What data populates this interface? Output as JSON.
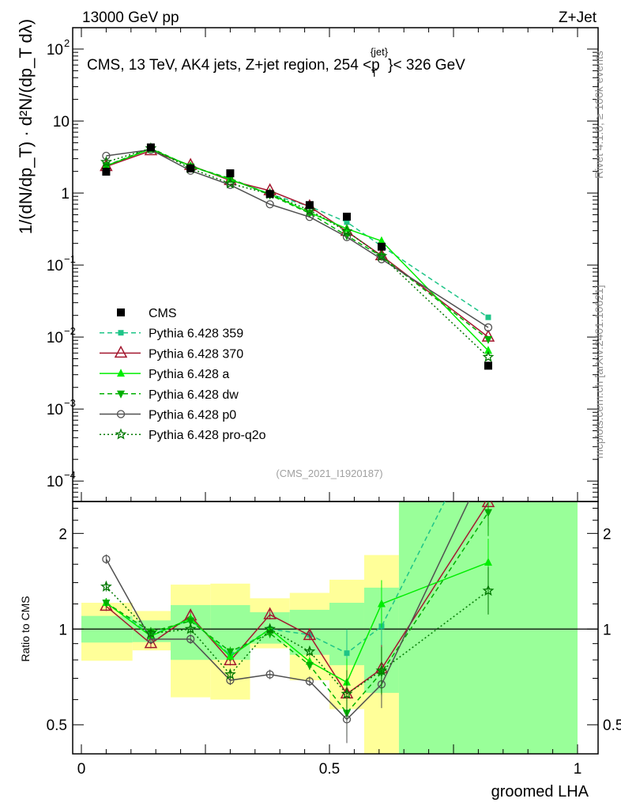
{
  "header": {
    "left": "13000 GeV pp",
    "right": "Z+Jet"
  },
  "side_text": {
    "rivet": "Rivet 4.1.0, ≥ 100k events",
    "mcplots": "mcplots.cern.ch [arXiv:2401.10621]"
  },
  "watermark": "(CMS_2021_I1920187)",
  "chart_data": [
    {
      "type": "line",
      "panel": "main",
      "title": "CMS, 13 TeV, AK4 jets, Z+jet region, 254 <p_T^{jet}< 326 GeV",
      "title_parts": {
        "main": "CMS, 13 TeV, AK4 jets, Z+jet region, 254 <p",
        "sub": "T",
        "sup": "{jet}",
        "tail": "}< 326 GeV"
      },
      "ylabel": "1/(dN/dp_T) · d²N/(dp_T dλ)",
      "yscale": "log",
      "ylim": [
        5.2e-05,
        198
      ],
      "xlim": [
        0,
        1
      ],
      "ytick_labels": [
        {
          "v": 100,
          "label": "10",
          "exp": "2"
        },
        {
          "v": 10,
          "label": "10",
          "exp": ""
        },
        {
          "v": 1,
          "label": "1",
          "exp": ""
        },
        {
          "v": 0.1,
          "label": "10",
          "exp": "−1"
        },
        {
          "v": 0.01,
          "label": "10",
          "exp": "−2"
        },
        {
          "v": 0.001,
          "label": "10",
          "exp": "−3"
        },
        {
          "v": 0.0001,
          "label": "10",
          "exp": "−4"
        }
      ],
      "legend_position": "left-middle",
      "x": [
        0.05,
        0.14,
        0.22,
        0.3,
        0.38,
        0.46,
        0.535,
        0.605,
        0.82
      ],
      "data": {
        "name": "CMS",
        "values": [
          1.98,
          4.3,
          2.2,
          1.88,
          0.97,
          0.68,
          0.47,
          0.18,
          0.004
        ]
      },
      "series": [
        {
          "name": "Pythia 6.428 359",
          "color": "#1ec487",
          "dash": "6,4",
          "marker": "square-small",
          "ratio": [
            1.21,
            0.96,
            1.07,
            0.83,
            1.0,
            0.96,
            0.84,
            1.02,
            4.7
          ]
        },
        {
          "name": "Pythia 6.428 370",
          "color": "#a3182f",
          "dash": "",
          "marker": "triangle-open",
          "ratio": [
            1.18,
            0.9,
            1.1,
            0.795,
            1.11,
            0.955,
            0.625,
            0.75,
            2.5
          ]
        },
        {
          "name": "Pythia 6.428 a",
          "color": "#00ee00",
          "dash": "",
          "marker": "triangle",
          "ratio": [
            1.21,
            0.95,
            1.08,
            0.82,
            1.0,
            0.79,
            0.68,
            1.2,
            1.62
          ]
        },
        {
          "name": "Pythia 6.428 dw",
          "color": "#00b000",
          "dash": "6,4",
          "marker": "triangle-down",
          "ratio": [
            1.21,
            0.98,
            1.06,
            0.85,
            0.97,
            0.77,
            0.545,
            0.73,
            2.33
          ]
        },
        {
          "name": "Pythia 6.428 p0",
          "color": "#505050",
          "dash": "",
          "marker": "circle-open",
          "ratio": [
            1.66,
            0.93,
            0.93,
            0.69,
            0.72,
            0.685,
            0.52,
            0.67,
            3.4
          ]
        },
        {
          "name": "Pythia 6.428 pro-q2o",
          "color": "#007800",
          "dash": "2,3",
          "marker": "star",
          "ratio": [
            1.36,
            0.97,
            1.0,
            0.72,
            1.0,
            0.85,
            0.625,
            0.74,
            1.32
          ]
        }
      ]
    },
    {
      "type": "line",
      "panel": "ratio",
      "ylabel": "Ratio to CMS",
      "xlabel": "groomed LHA",
      "yscale": "log",
      "ylim": [
        0.405,
        2.52
      ],
      "xlim": [
        0,
        1
      ],
      "ytick_labels": [
        {
          "v": 2,
          "label": "2"
        },
        {
          "v": 1,
          "label": "1"
        },
        {
          "v": 0.5,
          "label": "0.5"
        }
      ],
      "xtick_labels": [
        {
          "v": 0,
          "label": "0"
        },
        {
          "v": 0.5,
          "label": "0.5"
        },
        {
          "v": 1,
          "label": "1"
        }
      ],
      "bin_edges": [
        0,
        0.103,
        0.18,
        0.26,
        0.34,
        0.42,
        0.5,
        0.57,
        0.64,
        1.0
      ],
      "uncertainty_bands": {
        "yellow": [
          [
            0.795,
            1.21
          ],
          [
            0.857,
            1.14
          ],
          [
            0.61,
            1.38
          ],
          [
            0.6,
            1.39
          ],
          [
            0.87,
            1.25
          ],
          [
            0.69,
            1.3
          ],
          [
            0.56,
            1.43
          ],
          [
            0.3,
            1.71
          ],
          [
            0.3,
            3.0
          ]
        ],
        "green": [
          [
            0.907,
            1.1
          ],
          [
            0.91,
            1.065
          ],
          [
            0.8,
            1.19
          ],
          [
            0.8,
            1.19
          ],
          [
            0.9,
            1.13
          ],
          [
            0.83,
            1.15
          ],
          [
            0.77,
            1.21
          ],
          [
            0.63,
            1.35
          ],
          [
            0.3,
            3.0
          ]
        ],
        "yellow_color": "#ffff99",
        "green_color": "#99ff99"
      }
    }
  ]
}
